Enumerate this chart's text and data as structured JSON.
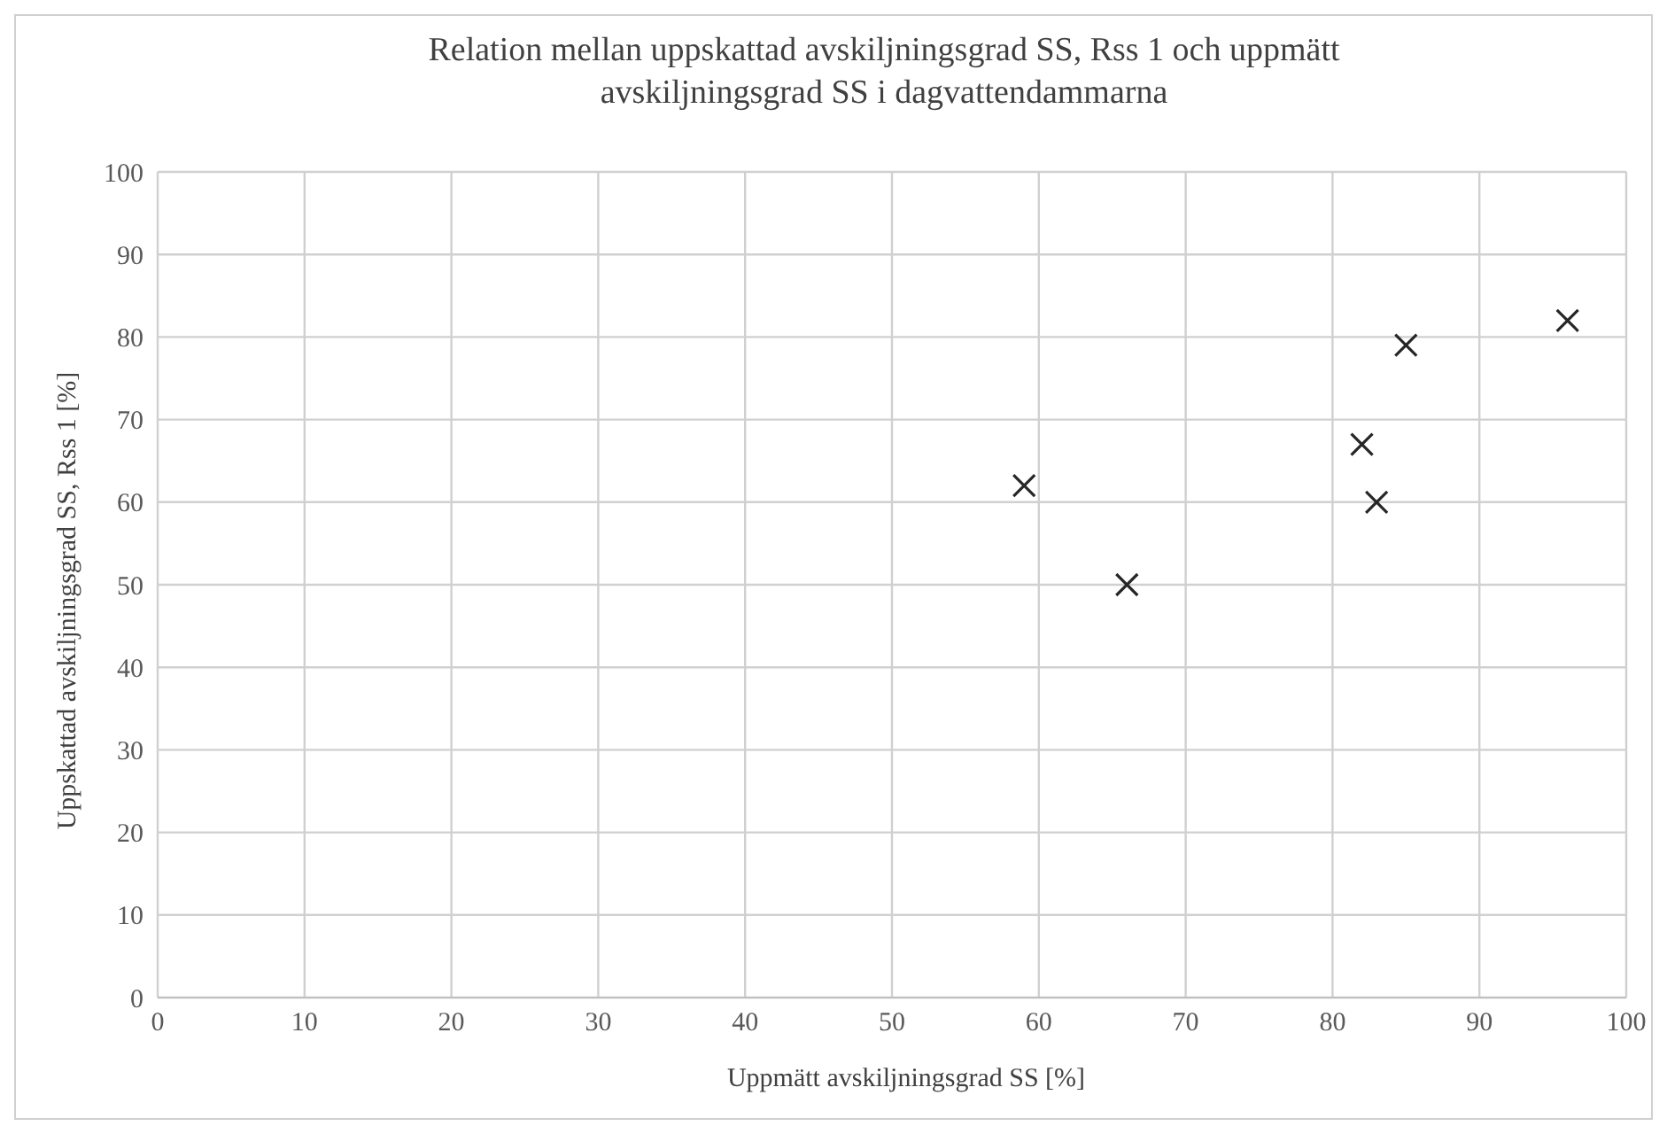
{
  "chart_data": {
    "type": "scatter",
    "title": "Relation mellan uppskattad avskiljningsgrad SS, Rss 1 och uppmätt avskiljningsgrad SS i dagvattendammarna",
    "xlabel": "Uppmätt avskiljningsgrad SS [%]",
    "ylabel": "Uppskattad avskiljningsgrad SS, Rss 1 [%]",
    "x": [
      59,
      66,
      82,
      83,
      85,
      96
    ],
    "series": [
      {
        "color": "#262626",
        "values": [
          62,
          50,
          67,
          60,
          79,
          82
        ]
      }
    ],
    "marker": "cross",
    "xlim": [
      0,
      100
    ],
    "xticks": [
      0,
      10,
      20,
      30,
      40,
      50,
      60,
      70,
      80,
      90,
      100
    ],
    "ylim": [
      0,
      100
    ],
    "yticks": [
      0,
      10,
      20,
      30,
      40,
      50,
      60,
      70,
      80,
      90,
      100
    ],
    "grid": true
  }
}
